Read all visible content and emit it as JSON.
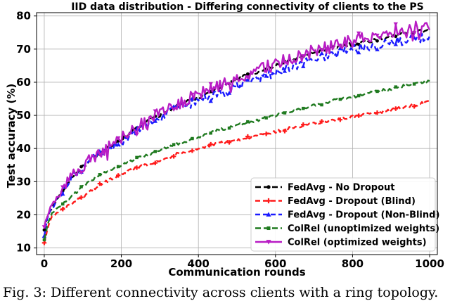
{
  "chart_data": {
    "type": "line",
    "title": "IID data distribution - Differing connectivity of clients to the PS",
    "xlabel": "Communication rounds",
    "ylabel": "Test accuracy (%)",
    "xlim": [
      -20,
      1020
    ],
    "ylim": [
      8,
      81
    ],
    "xticks": [
      0,
      200,
      400,
      600,
      800,
      1000
    ],
    "yticks": [
      10,
      20,
      30,
      40,
      50,
      60,
      70,
      80
    ],
    "grid": true,
    "legend_position": "lower-right",
    "series": [
      {
        "name": "FedAvg - No Dropout",
        "color": "#000000",
        "marker": "circle",
        "dash": "8,4",
        "noise": 0.4,
        "x": [
          0,
          5,
          10,
          20,
          40,
          60,
          80,
          100,
          130,
          160,
          200,
          250,
          300,
          350,
          400,
          450,
          500,
          550,
          600,
          650,
          700,
          750,
          800,
          850,
          900,
          950,
          1000
        ],
        "y": [
          15.5,
          18,
          20,
          22,
          26,
          29.5,
          32.5,
          34.5,
          37.5,
          40,
          43,
          47,
          50,
          53,
          55.5,
          58,
          61,
          63,
          65,
          67,
          69,
          70.5,
          71.5,
          72.5,
          74,
          75,
          76
        ]
      },
      {
        "name": "FedAvg - Dropout (Blind)",
        "color": "#ff1a1a",
        "marker": "plus",
        "dash": "7,4",
        "noise": 0.35,
        "x": [
          0,
          5,
          10,
          20,
          40,
          60,
          80,
          100,
          130,
          160,
          200,
          250,
          300,
          350,
          400,
          450,
          500,
          550,
          600,
          650,
          700,
          750,
          800,
          850,
          900,
          950,
          1000
        ],
        "y": [
          11.5,
          14,
          16.5,
          19.5,
          21,
          22.5,
          24,
          25.5,
          28,
          30,
          32.5,
          34.5,
          36.5,
          38.5,
          40,
          41.5,
          42.5,
          44,
          45,
          46.5,
          47.5,
          48.5,
          49.5,
          50.5,
          51.5,
          53,
          54
        ]
      },
      {
        "name": "FedAvg - Dropout (Non-Blind)",
        "color": "#1a1aff",
        "marker": "triangle",
        "dash": "7,4",
        "noise": 1.0,
        "x": [
          0,
          5,
          10,
          20,
          40,
          60,
          80,
          100,
          130,
          160,
          200,
          250,
          300,
          350,
          400,
          450,
          500,
          550,
          600,
          650,
          700,
          750,
          800,
          850,
          900,
          950,
          1000
        ],
        "y": [
          14,
          17,
          19.5,
          22,
          26,
          29,
          32,
          34,
          37,
          39.5,
          42,
          46,
          49.5,
          52,
          54.5,
          56,
          58.5,
          61,
          63,
          65,
          67,
          68.5,
          70,
          71,
          72,
          73,
          73.5
        ]
      },
      {
        "name": "ColRel (unoptimized weights)",
        "color": "#1f7a1f",
        "marker": "square",
        "dash": "8,4",
        "noise": 0.3,
        "x": [
          0,
          5,
          10,
          20,
          40,
          60,
          80,
          100,
          130,
          160,
          200,
          250,
          300,
          350,
          400,
          450,
          500,
          550,
          600,
          650,
          700,
          750,
          800,
          850,
          900,
          950,
          1000
        ],
        "y": [
          12.5,
          15,
          17.5,
          20.5,
          22.5,
          24.5,
          26.5,
          28.5,
          31,
          33,
          35,
          37.5,
          39.5,
          41.5,
          43.5,
          45.5,
          47,
          48.5,
          50,
          51.5,
          53,
          54.5,
          55.5,
          57,
          58,
          59.5,
          60.5
        ]
      },
      {
        "name": "ColRel (optimized weights)",
        "color": "#b81cc4",
        "marker": "tri-down",
        "dash": "",
        "noise": 1.4,
        "x": [
          0,
          5,
          10,
          20,
          40,
          60,
          80,
          100,
          130,
          160,
          200,
          250,
          300,
          350,
          400,
          450,
          500,
          550,
          600,
          650,
          700,
          750,
          800,
          850,
          900,
          950,
          1000
        ],
        "y": [
          16,
          18.5,
          20.5,
          22.5,
          26.5,
          30,
          32.5,
          34.5,
          37.5,
          40,
          43,
          47,
          50.5,
          53.5,
          56.5,
          59,
          61.5,
          63.5,
          65.5,
          67.5,
          69.5,
          71.5,
          72.5,
          74,
          75.5,
          76.5,
          77.5
        ]
      }
    ]
  },
  "caption": "Fig. 3: Different connectivity across clients with a ring topology."
}
